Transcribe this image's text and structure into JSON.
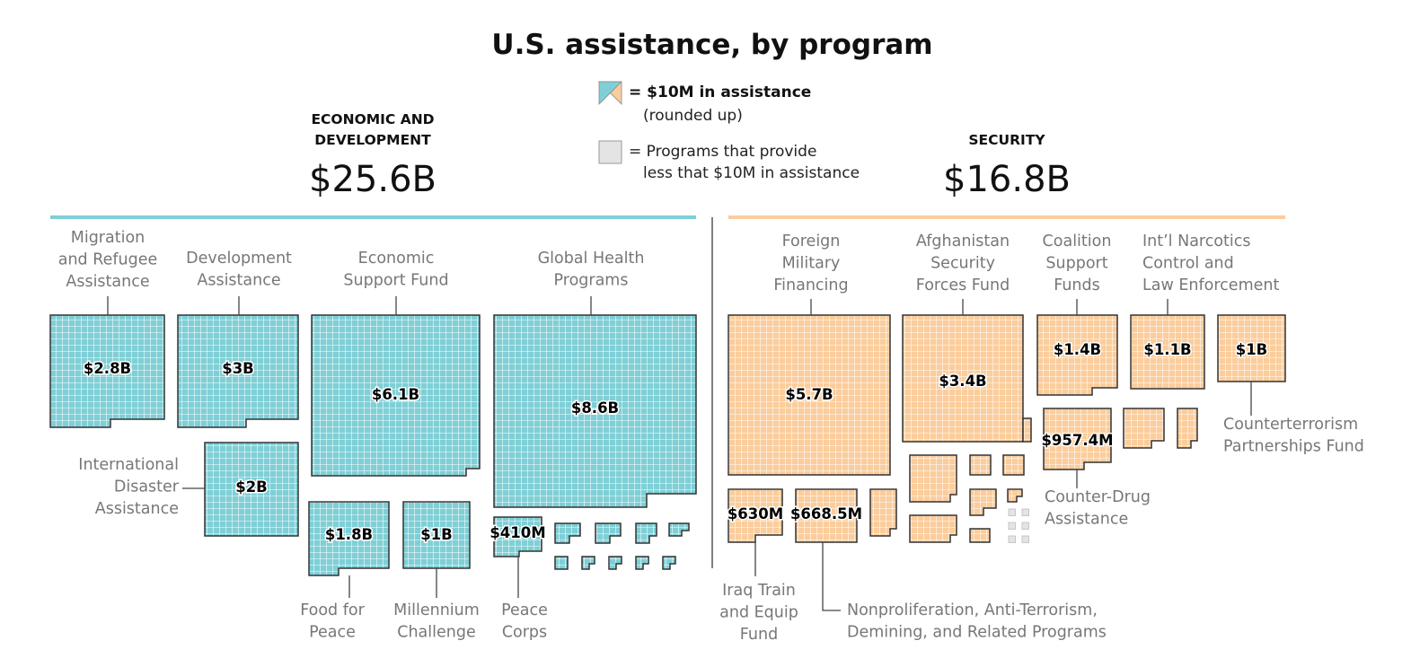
{
  "chart_data": {
    "type": "waffle",
    "title": "U.S. assistance, by program",
    "legend": {
      "unit_label": "= $10M in assistance",
      "unit_note": "(rounded up)",
      "small_label_1": "= Programs that provide",
      "small_label_2": "less that $10M in assistance"
    },
    "sections": [
      {
        "name_1": "ECONOMIC AND",
        "name_2": "DEVELOPMENT",
        "total": "$25.6B",
        "color": "#7fcfd6",
        "programs": [
          {
            "label": [
              "Migration",
              "and Refugee",
              "Assistance"
            ],
            "value_label": "$2.8B",
            "value": 2800
          },
          {
            "label": [
              "Development",
              "Assistance"
            ],
            "value_label": "$3B",
            "value": 3000
          },
          {
            "label": [
              "Economic",
              "Support Fund"
            ],
            "value_label": "$6.1B",
            "value": 6100
          },
          {
            "label": [
              "Global Health",
              "Programs"
            ],
            "value_label": "$8.6B",
            "value": 8600
          },
          {
            "label": [
              "International",
              "Disaster",
              "Assistance"
            ],
            "value_label": "$2B",
            "value": 2000
          },
          {
            "label": [
              "Food for",
              "Peace"
            ],
            "value_label": "$1.8B",
            "value": 1800
          },
          {
            "label": [
              "Millennium",
              "Challenge"
            ],
            "value_label": "$1B",
            "value": 1000
          },
          {
            "label": [
              "Peace",
              "Corps"
            ],
            "value_label": "$410M",
            "value": 410
          }
        ]
      },
      {
        "name_1": "SECURITY",
        "name_2": "",
        "total": "$16.8B",
        "color": "#fbcd9c",
        "programs": [
          {
            "label": [
              "Foreign",
              "Military",
              "Financing"
            ],
            "value_label": "$5.7B",
            "value": 5700
          },
          {
            "label": [
              "Afghanistan",
              "Security",
              "Forces Fund"
            ],
            "value_label": "$3.4B",
            "value": 3400
          },
          {
            "label": [
              "Coalition",
              "Support",
              "Funds"
            ],
            "value_label": "$1.4B",
            "value": 1400
          },
          {
            "label": [
              "Int’l Narcotics",
              "Control and",
              "Law Enforcement"
            ],
            "value_label": "$1.1B",
            "value": 1100
          },
          {
            "label": [
              "Counterterrorism",
              "Partnerships Fund"
            ],
            "value_label": "$1B",
            "value": 1000
          },
          {
            "label": [
              "Counter-Drug",
              "Assistance"
            ],
            "value_label": "$957.4M",
            "value": 957.4
          },
          {
            "label": [
              "Iraq Train",
              "and Equip",
              "Fund"
            ],
            "value_label": "$630M",
            "value": 630
          },
          {
            "label": [
              "Nonproliferation, Anti-Terrorism,",
              "Demining, and Related Programs"
            ],
            "value_label": "$668.5M",
            "value": 668.5
          }
        ]
      }
    ],
    "colors": {
      "economic": "#7fcfd6",
      "security": "#fbcd9c",
      "small": "#e4e4e4",
      "grid": "#ffffff",
      "outline": "#333333"
    }
  }
}
